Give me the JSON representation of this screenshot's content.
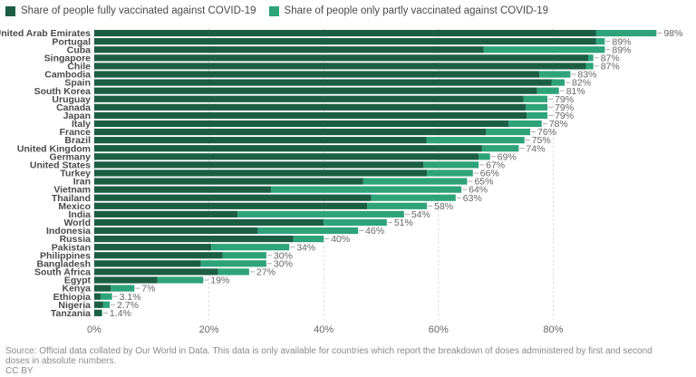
{
  "legend": {
    "full_label": "Share of people fully vaccinated against COVID-19",
    "partial_label": "Share of people only partly vaccinated against COVID-19"
  },
  "colors": {
    "full": "#1b5e44",
    "partial": "#2ea37a",
    "grid": "#dddddd"
  },
  "source": "Source: Official data collated by Our World in Data. This data is only available for countries which report the breakdown of doses administered by first and second doses in absolute numbers.",
  "license": "CC BY",
  "chart_data": {
    "type": "bar",
    "orientation": "horizontal",
    "stacked": true,
    "title": "",
    "xlabel": "",
    "ylabel": "",
    "xlim": [
      0,
      100
    ],
    "xticks": [
      0,
      20,
      40,
      60,
      80
    ],
    "tick_labels": [
      "0%",
      "20%",
      "40%",
      "60%",
      "80%"
    ],
    "grid": true,
    "categories": [
      "United Arab Emirates",
      "Portugal",
      "Cuba",
      "Singapore",
      "Chile",
      "Cambodia",
      "Spain",
      "South Korea",
      "Uruguay",
      "Canada",
      "Japan",
      "Italy",
      "France",
      "Brazil",
      "United Kingdom",
      "Germany",
      "United States",
      "Turkey",
      "Iran",
      "Vietnam",
      "Thailand",
      "Mexico",
      "India",
      "World",
      "Indonesia",
      "Russia",
      "Pakistan",
      "Philippines",
      "Bangladesh",
      "South Africa",
      "Egypt",
      "Kenya",
      "Ethiopia",
      "Nigeria",
      "Tanzania"
    ],
    "series": [
      {
        "name": "Share of people fully vaccinated against COVID-19",
        "values": [
          87.5,
          87.5,
          67.9,
          86.1,
          85.7,
          77.6,
          79.7,
          77.2,
          74.8,
          75.2,
          75.4,
          72.2,
          68.3,
          57.9,
          67.6,
          67.0,
          57.4,
          58.0,
          46.9,
          30.8,
          48.3,
          47.6,
          25.0,
          40.0,
          28.5,
          34.7,
          20.4,
          22.4,
          18.6,
          21.6,
          11.0,
          2.9,
          1.1,
          1.5,
          1.3
        ]
      },
      {
        "name": "Share of people only partly vaccinated against COVID-19",
        "values": [
          10.5,
          1.5,
          21.1,
          0.9,
          1.3,
          5.4,
          2.3,
          3.8,
          4.2,
          3.8,
          3.6,
          5.8,
          7.7,
          17.1,
          6.4,
          2.0,
          9.6,
          8.0,
          18.1,
          33.2,
          14.7,
          10.4,
          29.0,
          11.0,
          17.5,
          5.3,
          13.6,
          7.6,
          11.4,
          5.4,
          8.0,
          4.1,
          2.0,
          1.2,
          0.1
        ]
      }
    ],
    "total_labels": [
      "98%",
      "89%",
      "89%",
      "87%",
      "87%",
      "83%",
      "82%",
      "81%",
      "79%",
      "79%",
      "79%",
      "78%",
      "76%",
      "75%",
      "74%",
      "69%",
      "67%",
      "66%",
      "65%",
      "64%",
      "63%",
      "58%",
      "54%",
      "51%",
      "46%",
      "40%",
      "34%",
      "30%",
      "30%",
      "27%",
      "19%",
      "7%",
      "3.1%",
      "2.7%",
      "1.4%"
    ]
  }
}
